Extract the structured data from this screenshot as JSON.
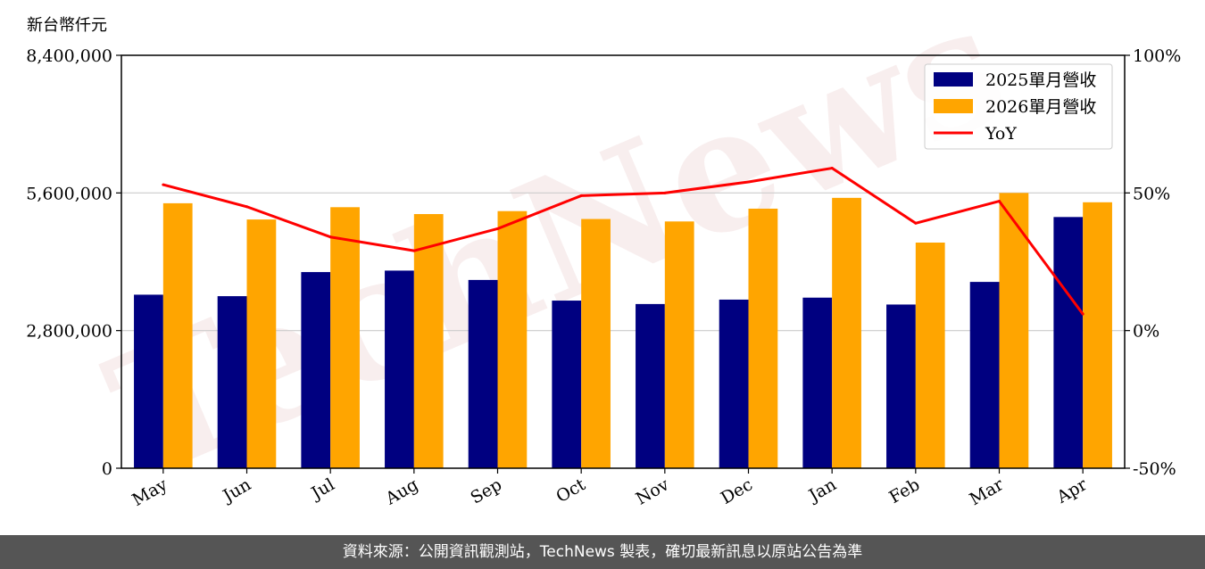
{
  "chart_data": {
    "type": "bar",
    "unit_label": "新台幣仟元",
    "categories": [
      "May",
      "Jun",
      "Jul",
      "Aug",
      "Sep",
      "Oct",
      "Nov",
      "Dec",
      "Jan",
      "Feb",
      "Mar",
      "Apr"
    ],
    "series": [
      {
        "name": "2025單月營收",
        "kind": "bar",
        "color": "#000080",
        "values": [
          3530000,
          3500000,
          3990000,
          4020000,
          3830000,
          3410000,
          3340000,
          3430000,
          3470000,
          3330000,
          3790000,
          5110000
        ]
      },
      {
        "name": "2026單月營收",
        "kind": "bar",
        "color": "#FFA500",
        "values": [
          5390000,
          5060000,
          5310000,
          5170000,
          5230000,
          5070000,
          5020000,
          5280000,
          5500000,
          4590000,
          5600000,
          5410000
        ]
      },
      {
        "name": "YoY",
        "kind": "line",
        "axis": "right",
        "color": "#FF0000",
        "values": [
          53,
          45,
          34,
          29,
          37,
          49,
          50,
          54,
          59,
          39,
          47,
          6
        ]
      }
    ],
    "y_left": {
      "min": 0,
      "max": 8400000,
      "ticks": [
        0,
        2800000,
        5600000,
        8400000
      ],
      "tick_labels": [
        "0",
        "2,800,000",
        "5,600,000",
        "8,400,000"
      ]
    },
    "y_right": {
      "min": -50,
      "max": 100,
      "ticks": [
        -50,
        0,
        50,
        100
      ],
      "tick_labels": [
        "-50%",
        "0%",
        "50%",
        "100%"
      ]
    },
    "grid": "horizontal",
    "legend": "top-right",
    "watermark": "TechNews"
  },
  "footer": {
    "text": "資料來源：公開資訊觀測站，TechNews 製表，確切最新訊息以原站公告為準"
  }
}
